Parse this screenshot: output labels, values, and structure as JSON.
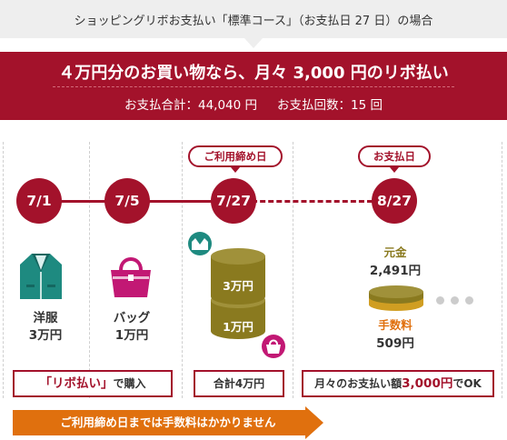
{
  "header": {
    "tab_title": "ショッピングリボお支払い「標準コース」（お支払日 27 日）の場合",
    "headline": "４万円分のお買い物なら、月々 3,000 円のリボ払い",
    "total_text": "お支払合計：44,040 円",
    "count_text": "お支払回数：15 回"
  },
  "timeline": {
    "dates": [
      "7/1",
      "7/5",
      "7/27",
      "8/27"
    ],
    "cutoff_label": "ご利用締め日",
    "payment_label": "お支払日"
  },
  "purchases": [
    {
      "name": "洋服",
      "amount": "3万円",
      "icon": "jacket-icon"
    },
    {
      "name": "バッグ",
      "amount": "1万円",
      "icon": "handbag-icon"
    }
  ],
  "stack": {
    "top_label": "3万円",
    "bottom_label": "1万円",
    "icons": [
      "jacket-icon",
      "handbag-icon"
    ]
  },
  "payment": {
    "principal_label": "元金",
    "principal_value": "2,491円",
    "fee_label": "手数料",
    "fee_value": "509円",
    "more_icon": "ellipsis-dots"
  },
  "boxes": {
    "revolving_bracket": "「リボ払い」",
    "revolving_suffix": "で購入",
    "total": "合計4万円",
    "monthly_prefix": "月々のお支払い額",
    "monthly_amount": "3,000円",
    "monthly_suffix": "でOK"
  },
  "arrow_note": "ご利用締め日までは手数料はかかりません",
  "colors": {
    "brand_red": "#a3122b",
    "olive": "#8a7a1f",
    "gold": "#e0b43a",
    "orange": "#e0700e",
    "teal": "#1e8a80",
    "pink": "#c21874"
  }
}
